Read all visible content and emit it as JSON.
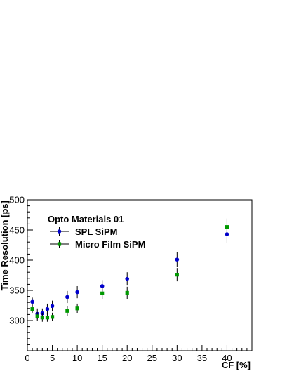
{
  "chart_data": {
    "type": "scatter",
    "title": "",
    "xlabel": "CF [%]",
    "ylabel": "Time Resolution [ps]",
    "xlim": [
      0,
      45
    ],
    "ylim": [
      250,
      500
    ],
    "x_ticks": [
      0,
      5,
      10,
      15,
      20,
      25,
      30,
      35,
      40
    ],
    "y_ticks": [
      300,
      350,
      400,
      450,
      500
    ],
    "grid": false,
    "legend": {
      "title": "Opto Materials 01",
      "placement": "top-left"
    },
    "series": [
      {
        "name": "SPL SiPM",
        "color": "#0000cc",
        "marker": "circle",
        "points": [
          {
            "x": 1,
            "y": 331,
            "err": 7
          },
          {
            "x": 2,
            "y": 311,
            "err": 9
          },
          {
            "x": 3,
            "y": 312,
            "err": 8
          },
          {
            "x": 4,
            "y": 319,
            "err": 9
          },
          {
            "x": 5,
            "y": 324,
            "err": 9
          },
          {
            "x": 8,
            "y": 339,
            "err": 10
          },
          {
            "x": 10,
            "y": 347,
            "err": 10
          },
          {
            "x": 15,
            "y": 357,
            "err": 10
          },
          {
            "x": 20,
            "y": 369,
            "err": 11
          },
          {
            "x": 30,
            "y": 401,
            "err": 12
          },
          {
            "x": 40,
            "y": 443,
            "err": 14
          }
        ]
      },
      {
        "name": "Micro Film SiPM",
        "color": "#009900",
        "marker": "square",
        "points": [
          {
            "x": 1,
            "y": 319,
            "err": 6
          },
          {
            "x": 2,
            "y": 307,
            "err": 7
          },
          {
            "x": 3,
            "y": 305,
            "err": 7
          },
          {
            "x": 4,
            "y": 305,
            "err": 7
          },
          {
            "x": 5,
            "y": 306,
            "err": 7
          },
          {
            "x": 8,
            "y": 316,
            "err": 8
          },
          {
            "x": 10,
            "y": 320,
            "err": 8
          },
          {
            "x": 15,
            "y": 345,
            "err": 10
          },
          {
            "x": 20,
            "y": 346,
            "err": 10
          },
          {
            "x": 30,
            "y": 376,
            "err": 11
          },
          {
            "x": 40,
            "y": 455,
            "err": 14
          }
        ]
      }
    ]
  }
}
